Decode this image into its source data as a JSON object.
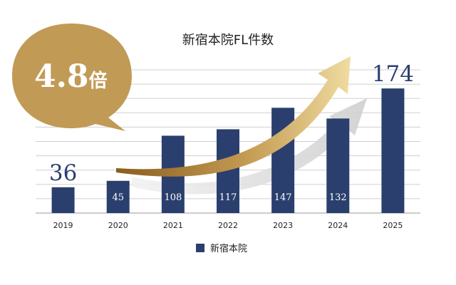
{
  "chart_data": {
    "type": "bar",
    "title": "新宿本院FL件数",
    "categories": [
      "2019",
      "2020",
      "2021",
      "2022",
      "2023",
      "2024",
      "2025"
    ],
    "series": [
      {
        "name": "新宿本院",
        "values": [
          36,
          45,
          108,
          117,
          147,
          132,
          174
        ]
      }
    ],
    "value_labels": [
      "36",
      "45",
      "108",
      "117",
      "147",
      "132",
      "174"
    ],
    "ylim": [
      0,
      200
    ],
    "grid": true,
    "legend": "bottom-center",
    "bar_color": "#2b3f6e",
    "accent_color": "#c19a55"
  },
  "badge": {
    "number": "4.8",
    "suffix": "倍",
    "color": "#c19a55"
  }
}
